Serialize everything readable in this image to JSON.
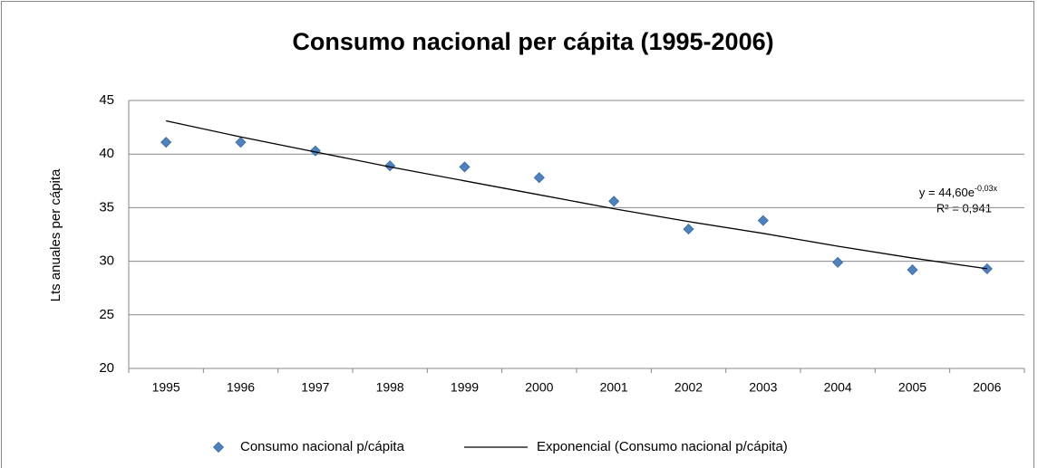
{
  "chart_data": {
    "type": "line",
    "title": "Consumo nacional per cápita (1995-2006)",
    "y_label": "Lts anuales per cápita",
    "categories": [
      "1995",
      "1996",
      "1997",
      "1998",
      "1999",
      "2000",
      "2001",
      "2002",
      "2003",
      "2004",
      "2005",
      "2006"
    ],
    "series": [
      {
        "name": "Consumo nacional p/cápita",
        "color": "#4f81bd",
        "marker": "diamond",
        "line": false,
        "values": [
          41.1,
          41.1,
          40.3,
          38.9,
          38.8,
          37.8,
          35.6,
          33.0,
          33.8,
          29.9,
          29.2,
          29.3
        ]
      },
      {
        "name": "Exponencial (Consumo nacional p/cápita)",
        "color": "#000000",
        "marker": null,
        "line": true,
        "values": [
          43.1,
          41.6,
          40.2,
          38.8,
          37.5,
          36.2,
          34.9,
          33.7,
          32.6,
          31.4,
          30.3,
          29.3
        ]
      }
    ],
    "annotations": {
      "equation": "y = 44,60e",
      "exponent": "-0,03x",
      "r2": "R² = 0,941"
    },
    "ylim": [
      20,
      45
    ],
    "yticks": [
      20,
      25,
      30,
      35,
      40,
      45
    ],
    "grid": true,
    "legend": "bottom"
  }
}
